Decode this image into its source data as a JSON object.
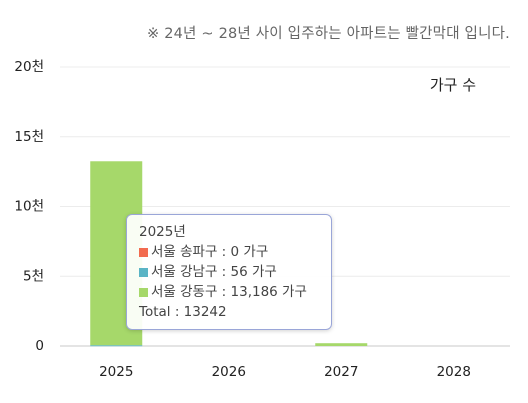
{
  "note": "※ 24년 ~ 28년 사이 입주하는 아파트는 빨간막대 입니다.",
  "chart_data": {
    "type": "bar",
    "stacked": true,
    "unit_label": "가구 수",
    "categories": [
      "2025",
      "2026",
      "2027",
      "2028"
    ],
    "y_ticks": [
      "0",
      "5천",
      "10천",
      "15천",
      "20천"
    ],
    "ylim": [
      0,
      20000
    ],
    "series": [
      {
        "name": "서울 송파구",
        "color": "#f26b4f",
        "values": [
          0,
          0,
          0,
          0
        ]
      },
      {
        "name": "서울 강남구",
        "color": "#5ab4c5",
        "values": [
          56,
          0,
          0,
          0
        ]
      },
      {
        "name": "서울 강동구",
        "color": "#a6d86a",
        "values": [
          13186,
          0,
          200,
          0
        ]
      }
    ],
    "tooltip": {
      "title": "2025년",
      "rows": [
        {
          "text": "서울 송파구 : 0 가구",
          "color": "#f26b4f"
        },
        {
          "text": "서울 강남구 : 56 가구",
          "color": "#5ab4c5"
        },
        {
          "text": "서울 강동구 : 13,186 가구",
          "color": "#a6d86a"
        }
      ],
      "total": "Total : 13242"
    }
  }
}
